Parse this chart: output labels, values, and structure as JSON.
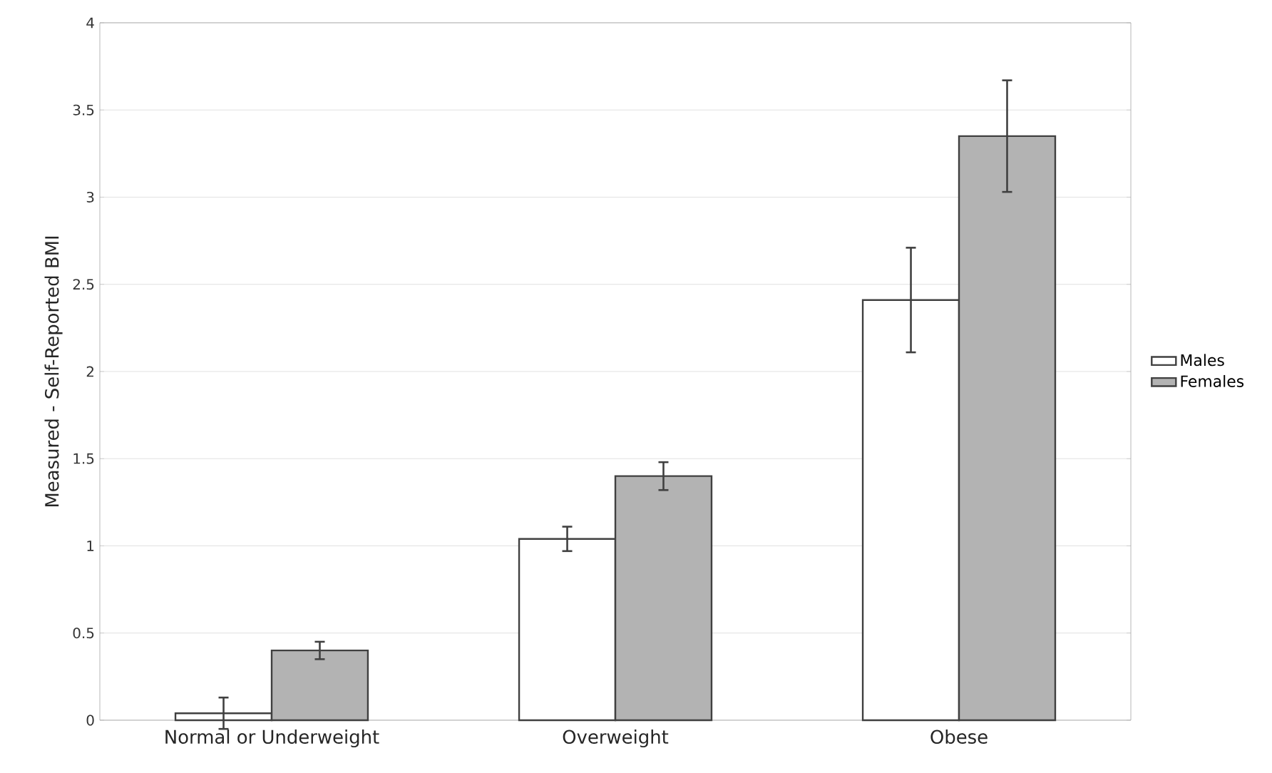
{
  "chart_data": {
    "type": "bar",
    "ylabel": "Measured - Self-Reported BMI",
    "categories": [
      "Normal or Underweight",
      "Overweight",
      "Obese"
    ],
    "series": [
      {
        "name": "Males",
        "color": "#ffffff",
        "values": [
          0.04,
          1.04,
          2.41
        ],
        "errors": [
          0.09,
          0.07,
          0.3
        ]
      },
      {
        "name": "Females",
        "color": "#b3b3b3",
        "values": [
          0.4,
          1.4,
          3.35
        ],
        "errors": [
          0.05,
          0.08,
          0.32
        ]
      }
    ],
    "ylim": [
      0,
      4
    ],
    "yticks": [
      0,
      0.5,
      1,
      1.5,
      2,
      2.5,
      3,
      3.5,
      4
    ],
    "grid": "y",
    "legend": "right"
  }
}
